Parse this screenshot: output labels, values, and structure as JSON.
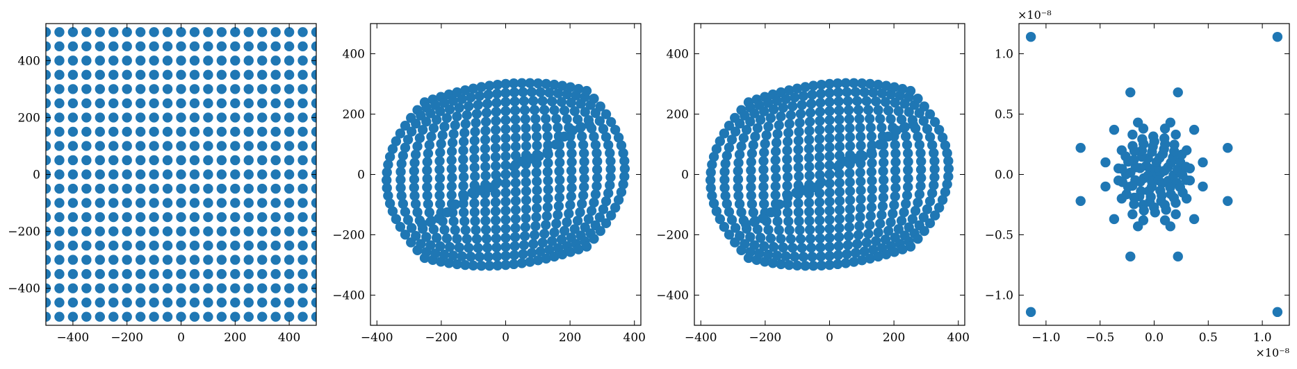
{
  "figure": {
    "background": "#ffffff"
  },
  "chart_data": [
    {
      "type": "scatter",
      "title": "",
      "xlabel": "",
      "ylabel": "",
      "xlim": [
        -500,
        500
      ],
      "ylim": [
        -530,
        530
      ],
      "xticks": [
        -400,
        -200,
        0,
        200,
        400
      ],
      "yticks": [
        -400,
        -200,
        0,
        200,
        400
      ],
      "xtick_labels": [
        "−400",
        "−200",
        "0",
        "200",
        "400"
      ],
      "ytick_labels": [
        "−400",
        "−200",
        "0",
        "200",
        "400"
      ],
      "offset_x": "",
      "offset_y": "",
      "color": "#1f77b4",
      "series": [
        {
          "description_type": "regular_grid",
          "x": [
            -500,
            -450,
            -400,
            -350,
            -300,
            -250,
            -200,
            -150,
            -100,
            -50,
            0,
            50,
            100,
            150,
            200,
            250,
            300,
            350,
            400,
            450,
            500
          ],
          "y": [
            -500,
            -450,
            -400,
            -350,
            -300,
            -250,
            -200,
            -150,
            -100,
            -50,
            0,
            50,
            100,
            150,
            200,
            250,
            300,
            350,
            400,
            450,
            500
          ]
        }
      ]
    },
    {
      "type": "scatter",
      "title": "",
      "xlabel": "",
      "ylabel": "",
      "xlim": [
        -420,
        420
      ],
      "ylim": [
        -500,
        500
      ],
      "xticks": [
        -400,
        -200,
        0,
        200,
        400
      ],
      "yticks": [
        -400,
        -200,
        0,
        200,
        400
      ],
      "xtick_labels": [
        "−400",
        "−200",
        "0",
        "200",
        "400"
      ],
      "ytick_labels": [
        "−400",
        "−200",
        "0",
        "200",
        "400"
      ],
      "offset_x": "",
      "offset_y": "",
      "color": "#1f77b4"
    },
    {
      "type": "scatter",
      "title": "",
      "xlabel": "",
      "ylabel": "",
      "xlim": [
        -420,
        420
      ],
      "ylim": [
        -500,
        500
      ],
      "xticks": [
        -400,
        -200,
        0,
        200,
        400
      ],
      "yticks": [
        -400,
        -200,
        0,
        200,
        400
      ],
      "xtick_labels": [
        "−400",
        "−200",
        "0",
        "200",
        "400"
      ],
      "ytick_labels": [
        "−400",
        "−200",
        "0",
        "200",
        "400"
      ],
      "offset_x": "",
      "offset_y": "",
      "color": "#1f77b4"
    },
    {
      "type": "scatter",
      "title": "",
      "xlabel": "",
      "ylabel": "",
      "xlim": [
        -1.25,
        1.25
      ],
      "ylim": [
        -1.25,
        1.25
      ],
      "xticks": [
        -1.0,
        -0.5,
        0.0,
        0.5,
        1.0
      ],
      "yticks": [
        -1.0,
        -0.5,
        0.0,
        0.5,
        1.0
      ],
      "xtick_labels": [
        "−1.0",
        "−0.5",
        "0.0",
        "0.5",
        "1.0"
      ],
      "ytick_labels": [
        "−1.0",
        "−0.5",
        "0.0",
        "0.5",
        "1.0"
      ],
      "offset_x": "×10⁻⁸",
      "offset_y": "×10⁻⁸",
      "color": "#1f77b4",
      "series": [
        {
          "name_hidden": true,
          "x": [
            -1.14,
            1.14,
            -1.14,
            1.14,
            -0.22,
            0.22,
            -0.22,
            0.22,
            -0.68,
            0.68,
            -0.68,
            0.68,
            -0.37,
            0.37,
            -0.37,
            0.37,
            -0.45,
            0.45,
            -0.45,
            0.45,
            -0.15,
            0.15,
            -0.15,
            0.15,
            -0.3,
            0.3,
            -0.3,
            0.3,
            -0.2,
            0.2,
            -0.2,
            0.2,
            -0.1,
            0.1,
            -0.1,
            0.1,
            -0.33,
            0.33,
            -0.33,
            0.33
          ],
          "y": [
            1.14,
            1.14,
            -1.14,
            -1.14,
            0.68,
            0.68,
            -0.68,
            -0.68,
            0.22,
            0.22,
            -0.22,
            -0.22,
            0.37,
            0.37,
            -0.37,
            -0.37,
            0.1,
            0.1,
            -0.1,
            -0.1,
            0.43,
            0.43,
            -0.43,
            -0.43,
            0.2,
            0.2,
            -0.2,
            -0.2,
            0.33,
            0.33,
            -0.33,
            -0.33,
            0.38,
            0.38,
            -0.38,
            -0.38,
            0.05,
            0.05,
            -0.05,
            -0.05
          ]
        }
      ]
    }
  ]
}
